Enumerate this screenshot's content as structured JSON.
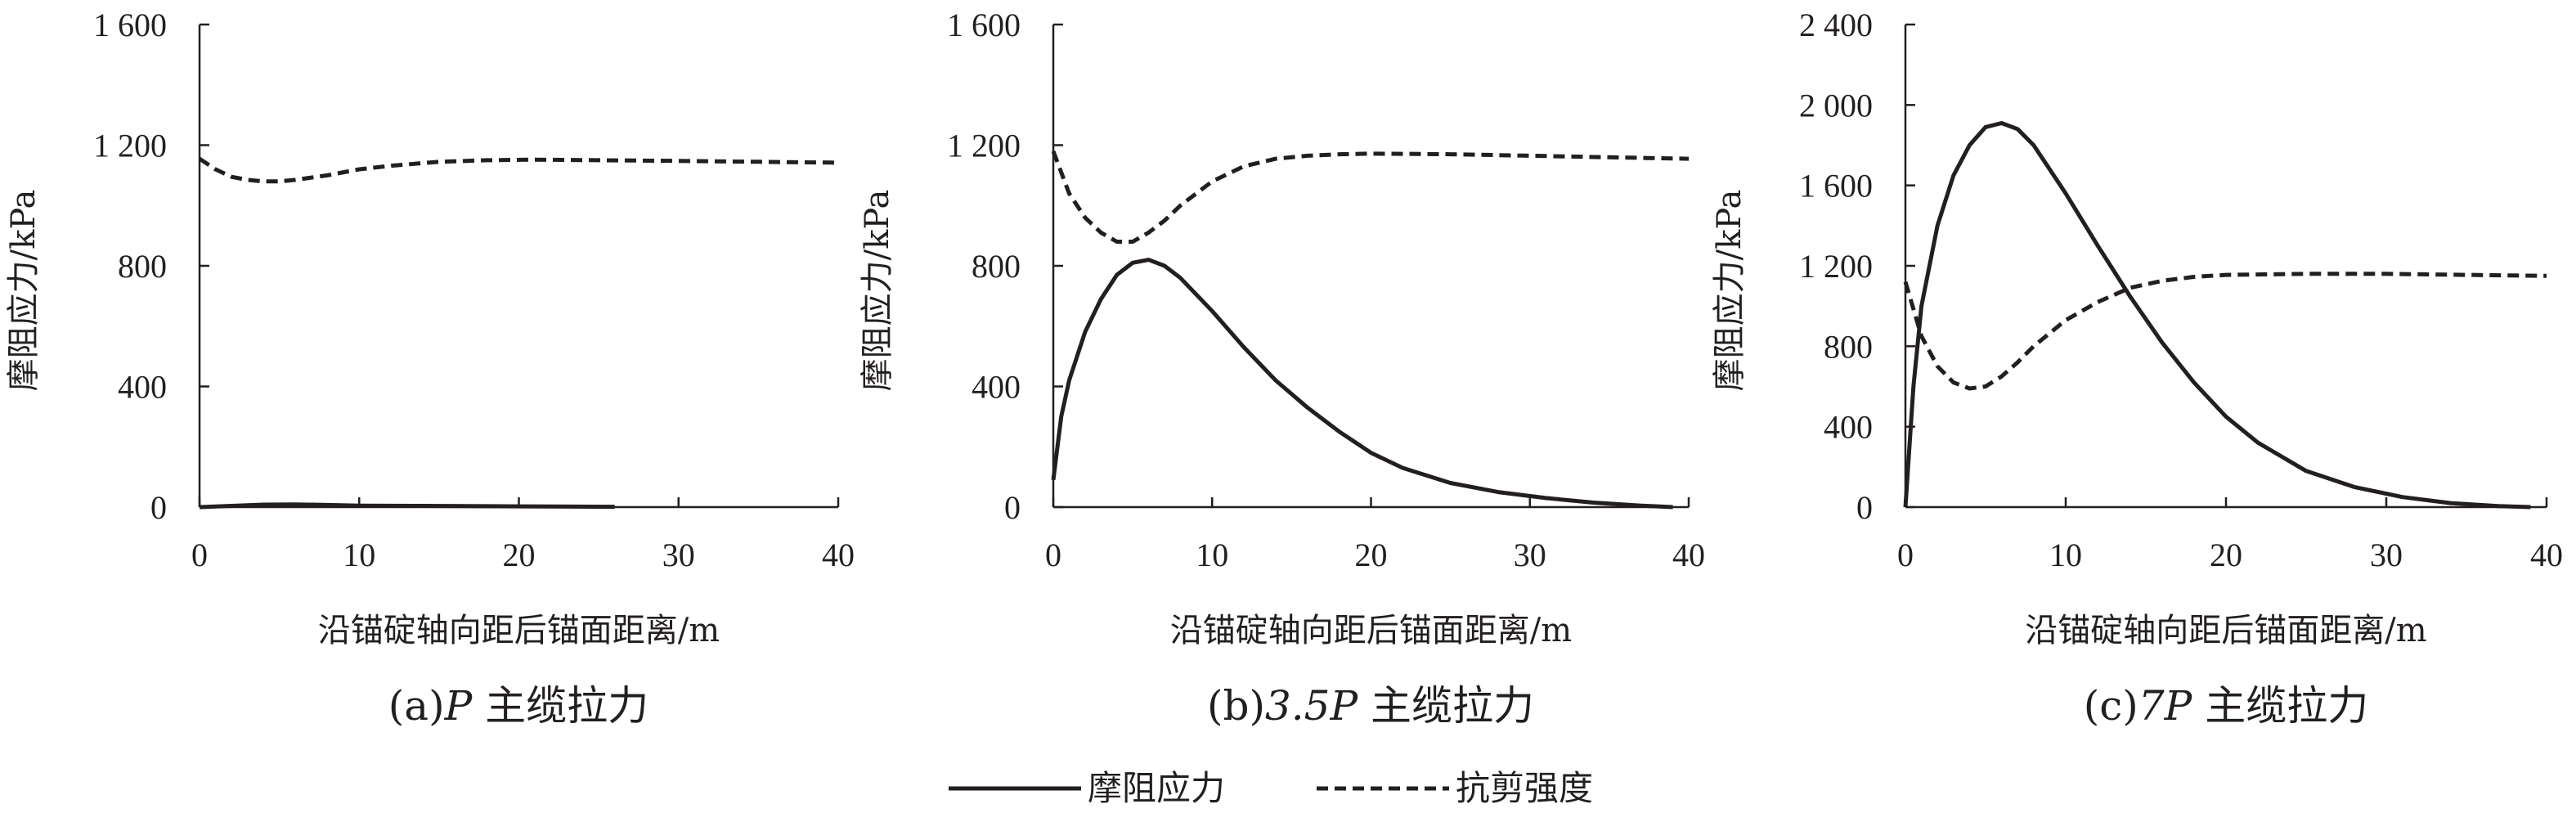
{
  "chart_data": [
    {
      "type": "line",
      "caption_prefix": "(a)",
      "caption_italic": "P",
      "caption_suffix": " 主缆拉力",
      "xlabel": "沿锚碇轴向距后锚面距离/m",
      "ylabel": "摩阻应力/kPa",
      "xlim": [
        0,
        40
      ],
      "ylim": [
        0,
        1600
      ],
      "xticks": [
        0,
        10,
        20,
        30,
        40
      ],
      "xtick_labels": [
        "0",
        "10",
        "20",
        "30",
        "40"
      ],
      "yticks": [
        0,
        400,
        800,
        1200,
        1600
      ],
      "ytick_labels": [
        "0",
        "400",
        "800",
        "1 200",
        "1 600"
      ],
      "series": [
        {
          "name": "摩阻应力",
          "style": "solid",
          "x": [
            0,
            2,
            4,
            6,
            8,
            10,
            14,
            18,
            22,
            26
          ],
          "y": [
            0,
            4,
            8,
            9,
            7,
            5,
            4,
            3,
            2,
            1
          ]
        },
        {
          "name": "抗剪强度",
          "style": "dashed",
          "x": [
            0,
            1,
            2,
            3,
            4,
            5,
            6,
            8,
            10,
            12,
            15,
            18,
            21,
            25,
            30,
            35,
            40
          ],
          "y": [
            1155,
            1120,
            1095,
            1085,
            1080,
            1080,
            1085,
            1100,
            1120,
            1132,
            1145,
            1150,
            1152,
            1150,
            1148,
            1145,
            1142
          ]
        }
      ]
    },
    {
      "type": "line",
      "caption_prefix": "(b)",
      "caption_italic": "3.5P",
      "caption_suffix": " 主缆拉力",
      "xlabel": "沿锚碇轴向距后锚面距离/m",
      "ylabel": "摩阻应力/kPa",
      "xlim": [
        0,
        40
      ],
      "ylim": [
        0,
        1600
      ],
      "xticks": [
        0,
        10,
        20,
        30,
        40
      ],
      "xtick_labels": [
        "0",
        "10",
        "20",
        "30",
        "40"
      ],
      "yticks": [
        0,
        400,
        800,
        1200,
        1600
      ],
      "ytick_labels": [
        "0",
        "400",
        "800",
        "1 200",
        "1 600"
      ],
      "series": [
        {
          "name": "摩阻应力",
          "style": "solid",
          "x": [
            0,
            0.5,
            1,
            2,
            3,
            4,
            5,
            6,
            7,
            8,
            10,
            12,
            14,
            16,
            18,
            20,
            22,
            25,
            28,
            31,
            34,
            37,
            39
          ],
          "y": [
            90,
            300,
            420,
            580,
            690,
            770,
            810,
            820,
            800,
            760,
            650,
            530,
            420,
            330,
            250,
            180,
            130,
            80,
            50,
            30,
            15,
            5,
            0
          ]
        },
        {
          "name": "抗剪强度",
          "style": "dashed",
          "x": [
            0,
            1,
            2,
            3,
            4,
            5,
            6,
            7,
            8,
            10,
            12,
            14,
            16,
            18,
            20,
            25,
            30,
            35,
            40
          ],
          "y": [
            1180,
            1040,
            960,
            910,
            880,
            880,
            910,
            950,
            1000,
            1080,
            1130,
            1155,
            1165,
            1170,
            1172,
            1170,
            1165,
            1160,
            1155
          ]
        }
      ]
    },
    {
      "type": "line",
      "caption_prefix": "(c)",
      "caption_italic": "7P",
      "caption_suffix": " 主缆拉力",
      "xlabel": "沿锚碇轴向距后锚面距离/m",
      "ylabel": "摩阻应力/kPa",
      "xlim": [
        0,
        40
      ],
      "ylim": [
        0,
        2400
      ],
      "xticks": [
        0,
        10,
        20,
        30,
        40
      ],
      "xtick_labels": [
        "0",
        "10",
        "20",
        "30",
        "40"
      ],
      "yticks": [
        0,
        400,
        800,
        1200,
        1600,
        2000,
        2400
      ],
      "ytick_labels": [
        "0",
        "400",
        "800",
        "1 200",
        "1 600",
        "2 000",
        "2 400"
      ],
      "series": [
        {
          "name": "摩阻应力",
          "style": "solid",
          "x": [
            0,
            0.5,
            1,
            2,
            3,
            4,
            5,
            6,
            7,
            8,
            10,
            12,
            14,
            16,
            18,
            20,
            22,
            25,
            28,
            31,
            34,
            37,
            39
          ],
          "y": [
            0,
            600,
            1000,
            1400,
            1650,
            1800,
            1890,
            1910,
            1880,
            1800,
            1560,
            1300,
            1050,
            820,
            620,
            450,
            320,
            180,
            100,
            50,
            20,
            5,
            0
          ]
        },
        {
          "name": "抗剪强度",
          "style": "dashed",
          "x": [
            0,
            1,
            2,
            3,
            4,
            5,
            6,
            7,
            8,
            10,
            12,
            14,
            16,
            18,
            20,
            25,
            30,
            35,
            40
          ],
          "y": [
            1120,
            850,
            700,
            620,
            590,
            600,
            650,
            720,
            800,
            930,
            1020,
            1090,
            1125,
            1145,
            1155,
            1160,
            1160,
            1155,
            1150
          ]
        }
      ]
    }
  ],
  "legend": {
    "items": [
      {
        "label": "摩阻应力",
        "style": "solid"
      },
      {
        "label": "抗剪强度",
        "style": "dashed"
      }
    ]
  }
}
